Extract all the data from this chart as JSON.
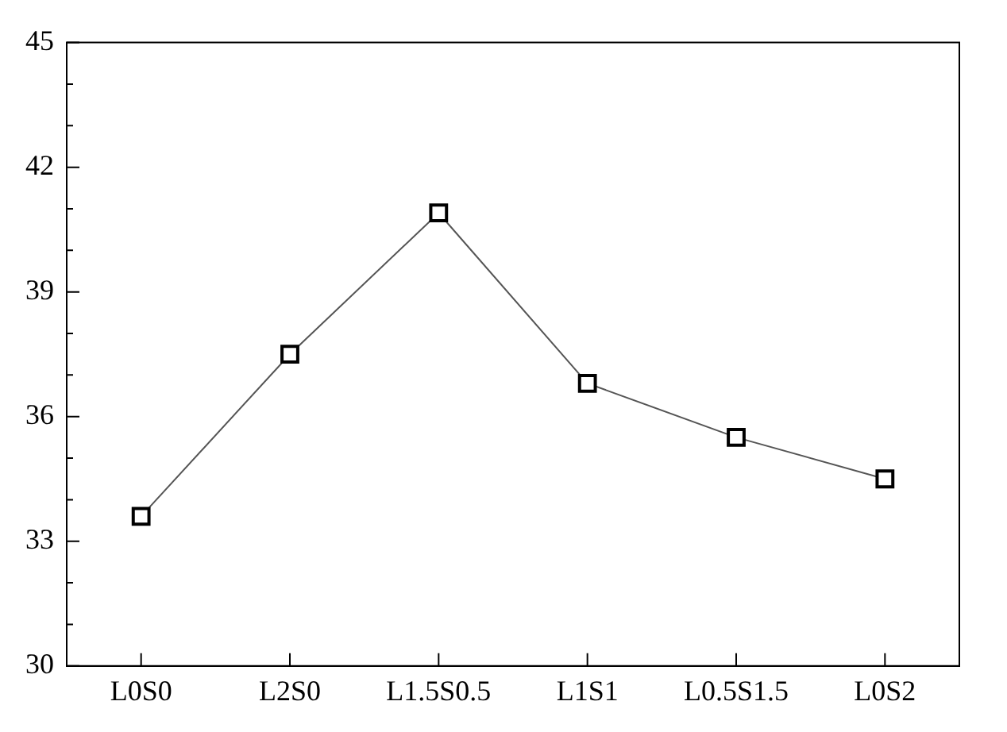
{
  "chart_data": {
    "type": "line",
    "categories": [
      "L0S0",
      "L2S0",
      "L1.5S0.5",
      "L1S1",
      "L0.5S1.5",
      "L0S2"
    ],
    "series": [
      {
        "color": "#000000",
        "values": [
          33.6,
          37.5,
          40.9,
          36.8,
          35.5,
          34.5
        ]
      }
    ],
    "ylim": [
      30,
      45
    ],
    "yticks": [
      30,
      {
        "value": 31,
        "label": null
      },
      {
        "value": 32,
        "label": null
      },
      33,
      {
        "value": 34,
        "label": null
      },
      {
        "value": 35,
        "label": null
      },
      36,
      {
        "value": 37,
        "label": null
      },
      {
        "value": 38,
        "label": null
      },
      39,
      {
        "value": 40,
        "label": null
      },
      {
        "value": 41,
        "label": null
      },
      42,
      {
        "value": 43,
        "label": null
      },
      {
        "value": 44,
        "label": null
      },
      45
    ],
    "marker": "square",
    "line_style": "solid",
    "grid": false,
    "legend": false
  }
}
